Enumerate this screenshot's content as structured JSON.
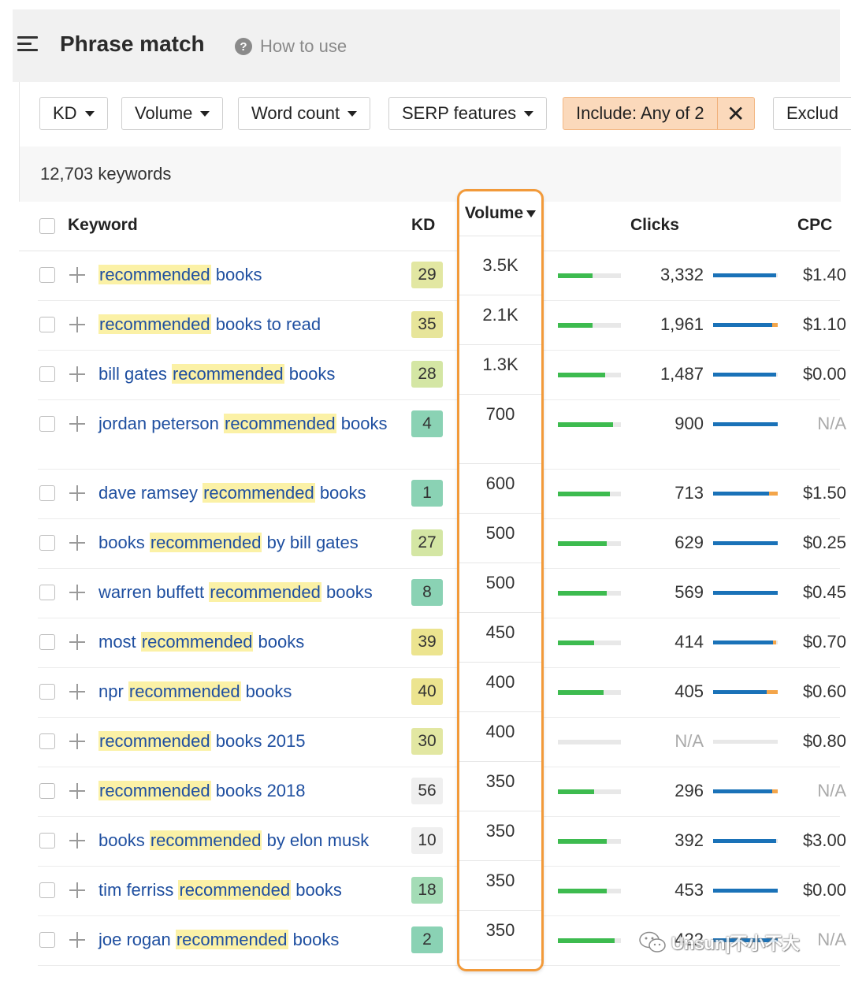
{
  "header": {
    "title": "Phrase match",
    "help_label": "How to use"
  },
  "filters": [
    {
      "label": "KD"
    },
    {
      "label": "Volume"
    },
    {
      "label": "Word count"
    },
    {
      "label": "SERP features"
    },
    {
      "label": "Include: Any of 2"
    },
    {
      "label": "Exclud"
    }
  ],
  "summary": {
    "count": "12,703 keywords"
  },
  "columns": {
    "keyword": "Keyword",
    "kd": "KD",
    "volume": "Volume",
    "clicks": "Clicks",
    "cpc": "CPC"
  },
  "rows": [
    {
      "pre": "",
      "hl": "recommended",
      "post": " books",
      "kd": "29",
      "kd_color": "#e2e7a2",
      "volume": "3.5K",
      "vol_fill": 0.55,
      "clicks": "3,332",
      "click_fill": 0.97,
      "paid": 0.0,
      "cpc": "$1.40"
    },
    {
      "pre": "",
      "hl": "recommended",
      "post": " books to read",
      "kd": "35",
      "kd_color": "#e7e59a",
      "volume": "2.1K",
      "vol_fill": 0.55,
      "clicks": "1,961",
      "click_fill": 0.92,
      "paid": 0.08,
      "cpc": "$1.10"
    },
    {
      "pre": "bill gates ",
      "hl": "recommended",
      "post": " books",
      "kd": "28",
      "kd_color": "#d4e6a4",
      "volume": "1.3K",
      "vol_fill": 0.75,
      "clicks": "1,487",
      "click_fill": 0.98,
      "paid": 0.0,
      "cpc": "$0.00"
    },
    {
      "pre": "jordan peterson ",
      "hl": "recommended",
      "post": " books",
      "kd": "4",
      "kd_color": "#8ad2b4",
      "volume": "700",
      "vol_fill": 0.88,
      "clicks": "900",
      "click_fill": 1.0,
      "paid": 0.0,
      "cpc": "N/A",
      "cpc_na": true,
      "tall": true
    },
    {
      "pre": "dave ramsey ",
      "hl": "recommended",
      "post": " books",
      "kd": "1",
      "kd_color": "#8ad2b4",
      "volume": "600",
      "vol_fill": 0.83,
      "clicks": "713",
      "click_fill": 0.87,
      "paid": 0.13,
      "cpc": "$1.50"
    },
    {
      "pre": "books ",
      "hl": "recommended",
      "post": " by bill gates",
      "kd": "27",
      "kd_color": "#d4e6a4",
      "volume": "500",
      "vol_fill": 0.78,
      "clicks": "629",
      "click_fill": 1.0,
      "paid": 0.0,
      "cpc": "$0.25"
    },
    {
      "pre": "warren buffett ",
      "hl": "recommended",
      "post": " books",
      "kd": "8",
      "kd_color": "#8ad2b4",
      "volume": "500",
      "vol_fill": 0.78,
      "clicks": "569",
      "click_fill": 1.0,
      "paid": 0.0,
      "cpc": "$0.45"
    },
    {
      "pre": "most ",
      "hl": "recommended",
      "post": " books",
      "kd": "39",
      "kd_color": "#ece48f",
      "volume": "450",
      "vol_fill": 0.58,
      "clicks": "414",
      "click_fill": 0.93,
      "paid": 0.05,
      "cpc": "$0.70"
    },
    {
      "pre": "npr ",
      "hl": "recommended",
      "post": " books",
      "kd": "40",
      "kd_color": "#ece48f",
      "volume": "400",
      "vol_fill": 0.72,
      "clicks": "405",
      "click_fill": 0.83,
      "paid": 0.17,
      "cpc": "$0.60"
    },
    {
      "pre": "",
      "hl": "recommended",
      "post": " books 2015",
      "kd": "30",
      "kd_color": "#e2e7a2",
      "volume": "400",
      "vol_fill": 0.0,
      "clicks": "N/A",
      "clicks_na": true,
      "click_fill": 0.0,
      "paid": 0.0,
      "cpc": "$0.80"
    },
    {
      "pre": "",
      "hl": "recommended",
      "post": " books 2018",
      "kd": "56",
      "kd_color": "#efefef",
      "volume": "350",
      "vol_fill": 0.58,
      "clicks": "296",
      "click_fill": 0.92,
      "paid": 0.08,
      "cpc": "N/A",
      "cpc_na": true
    },
    {
      "pre": "books ",
      "hl": "recommended",
      "post": " by elon musk",
      "kd": "10",
      "kd_color": "#efefef",
      "volume": "350",
      "vol_fill": 0.78,
      "clicks": "392",
      "click_fill": 0.97,
      "paid": 0.0,
      "cpc": "$3.00"
    },
    {
      "pre": "tim ferriss ",
      "hl": "recommended",
      "post": " books",
      "kd": "18",
      "kd_color": "#a4dcb6",
      "volume": "350",
      "vol_fill": 0.78,
      "clicks": "453",
      "click_fill": 1.0,
      "paid": 0.0,
      "cpc": "$0.00"
    },
    {
      "pre": "joe rogan ",
      "hl": "recommended",
      "post": " books",
      "kd": "2",
      "kd_color": "#8ad2b4",
      "volume": "350",
      "vol_fill": 0.9,
      "clicks": "422",
      "click_fill": 1.0,
      "paid": 0.0,
      "cpc": "N/A",
      "cpc_na": true
    }
  ],
  "watermark": {
    "text": "Unsun|不小不大"
  }
}
